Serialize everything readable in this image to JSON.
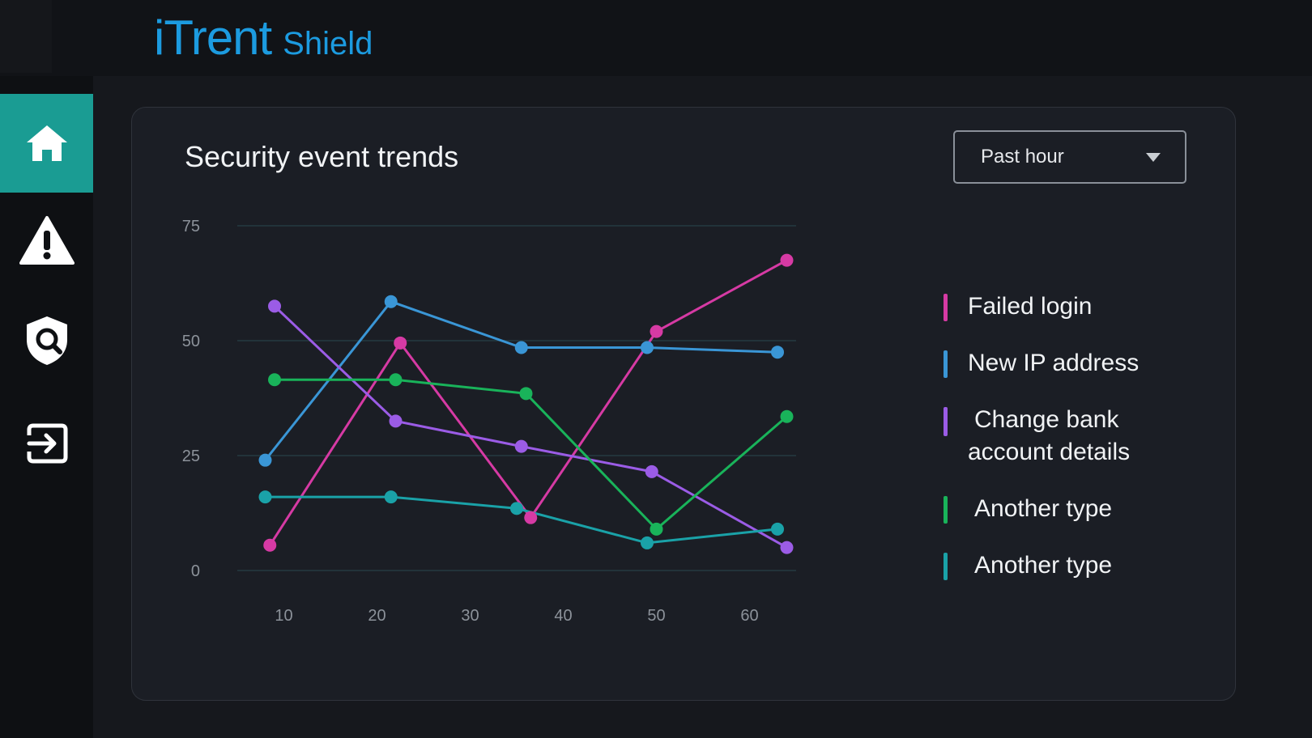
{
  "app": {
    "brand_main": "iTrent",
    "brand_sub": "Shield"
  },
  "sidebar": {
    "items": [
      {
        "icon": "home-icon",
        "active": true
      },
      {
        "icon": "warning-icon",
        "active": false
      },
      {
        "icon": "shield-search-icon",
        "active": false
      },
      {
        "icon": "logout-icon",
        "active": false
      }
    ]
  },
  "card": {
    "title": "Security event trends",
    "range_selector": "Past hour"
  },
  "chart_data": {
    "type": "line",
    "title": "Security event trends",
    "xlabel": "",
    "ylabel": "",
    "x_ticks": [
      10,
      20,
      30,
      40,
      50,
      60
    ],
    "y_ticks": [
      0,
      25,
      50,
      75
    ],
    "xlim": [
      5,
      65
    ],
    "ylim": [
      0,
      75
    ],
    "grid": true,
    "legend_position": "right",
    "series": [
      {
        "name": "Failed login",
        "color": "#d63aa4",
        "x": [
          8.5,
          22.5,
          36.5,
          50,
          64
        ],
        "y": [
          5.5,
          49.5,
          11.5,
          52,
          67.5
        ]
      },
      {
        "name": "New IP address",
        "color": "#3a96d6",
        "x": [
          8,
          21.5,
          35.5,
          49,
          63
        ],
        "y": [
          24,
          58.5,
          48.5,
          48.5,
          47.5
        ]
      },
      {
        "name": "Change bank account details",
        "color": "#9b5ce6",
        "x": [
          9,
          22,
          35.5,
          49.5,
          64
        ],
        "y": [
          57.5,
          32.5,
          27,
          21.5,
          5
        ]
      },
      {
        "name": "Another type",
        "color": "#19b35a",
        "x": [
          9,
          22,
          36,
          50,
          64
        ],
        "y": [
          41.5,
          41.5,
          38.5,
          9,
          33.5
        ]
      },
      {
        "name": "Another type",
        "color": "#1aa2a8",
        "x": [
          8,
          21.5,
          35,
          49,
          63
        ],
        "y": [
          16,
          16,
          13.5,
          6,
          9
        ]
      }
    ]
  }
}
